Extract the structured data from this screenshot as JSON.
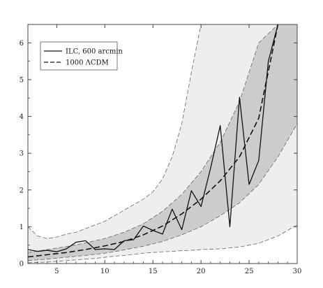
{
  "chart_data": {
    "type": "line",
    "title": "",
    "xlabel": "",
    "ylabel": "",
    "xlim": [
      2,
      30
    ],
    "ylim": [
      0,
      6.5
    ],
    "x_ticks": [
      5,
      10,
      15,
      20,
      25,
      30
    ],
    "y_ticks": [
      0,
      1,
      2,
      3,
      4,
      5,
      6
    ],
    "grid": false,
    "legend_position": "top-left",
    "colors": {
      "outer_band": "#eeeeee",
      "inner_band": "#cccccc",
      "line": "#111111",
      "axis": "#444444"
    },
    "series": [
      {
        "name": "ILC, 600 arcmin",
        "style": "solid",
        "x": [
          2,
          3,
          4,
          5,
          6,
          7,
          8,
          9,
          10,
          11,
          12,
          13,
          14,
          15,
          16,
          17,
          18,
          19,
          20,
          21,
          22,
          23,
          24,
          25,
          26,
          27,
          28
        ],
        "y": [
          0.38,
          0.33,
          0.36,
          0.32,
          0.4,
          0.58,
          0.62,
          0.38,
          0.4,
          0.38,
          0.62,
          0.65,
          1.02,
          0.9,
          0.8,
          1.48,
          0.92,
          1.98,
          1.55,
          2.6,
          3.75,
          1.0,
          4.52,
          2.15,
          2.8,
          5.5,
          6.5
        ]
      },
      {
        "name": "1000 ΛCDM",
        "style": "dashed",
        "x": [
          2,
          4,
          6,
          8,
          10,
          12,
          14,
          16,
          18,
          20,
          22,
          24,
          26,
          28
        ],
        "y": [
          0.18,
          0.24,
          0.3,
          0.38,
          0.48,
          0.6,
          0.78,
          1.02,
          1.35,
          1.75,
          2.25,
          2.9,
          3.95,
          6.5
        ]
      }
    ],
    "bands": [
      {
        "name": "outer",
        "x": [
          2,
          3,
          4,
          5,
          6,
          7,
          8,
          9,
          10,
          11,
          12,
          13,
          14,
          15,
          16,
          17,
          18,
          19,
          20,
          22,
          24,
          26,
          28,
          30
        ],
        "upper": [
          1.0,
          0.75,
          0.68,
          0.72,
          0.8,
          0.85,
          0.95,
          1.05,
          1.15,
          1.3,
          1.45,
          1.6,
          1.75,
          1.95,
          2.3,
          2.9,
          3.8,
          5.2,
          6.5,
          6.5,
          6.5,
          6.5,
          6.5,
          6.5
        ],
        "lower": [
          0.02,
          0.03,
          0.04,
          0.06,
          0.08,
          0.1,
          0.12,
          0.14,
          0.17,
          0.2,
          0.22,
          0.25,
          0.28,
          0.3,
          0.32,
          0.33,
          0.35,
          0.36,
          0.38,
          0.4,
          0.45,
          0.55,
          0.75,
          1.05
        ]
      },
      {
        "name": "inner",
        "x": [
          2,
          4,
          6,
          8,
          10,
          12,
          14,
          16,
          18,
          20,
          22,
          24,
          26,
          28,
          30
        ],
        "upper": [
          0.3,
          0.38,
          0.46,
          0.56,
          0.68,
          0.85,
          1.08,
          1.42,
          1.88,
          2.5,
          3.3,
          4.4,
          6.0,
          6.5,
          6.5
        ],
        "lower": [
          0.08,
          0.12,
          0.17,
          0.22,
          0.28,
          0.37,
          0.47,
          0.6,
          0.78,
          1.0,
          1.3,
          1.65,
          2.15,
          2.9,
          3.8
        ]
      }
    ]
  }
}
